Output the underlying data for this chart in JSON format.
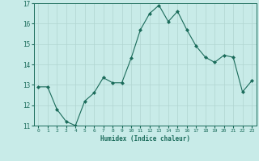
{
  "x": [
    0,
    1,
    2,
    3,
    4,
    5,
    6,
    7,
    8,
    9,
    10,
    11,
    12,
    13,
    14,
    15,
    16,
    17,
    18,
    19,
    20,
    21,
    22,
    23
  ],
  "y": [
    12.9,
    12.9,
    11.8,
    11.2,
    11.0,
    12.2,
    12.6,
    13.35,
    13.1,
    13.1,
    14.3,
    15.7,
    16.5,
    16.9,
    16.1,
    16.6,
    15.7,
    14.9,
    14.35,
    14.1,
    14.45,
    14.35,
    12.65,
    13.2
  ],
  "line_color": "#1a6b5a",
  "marker": "D",
  "marker_size": 2,
  "bg_color": "#c8ebe8",
  "grid_color": "#b0d5d0",
  "xlabel": "Humidex (Indice chaleur)",
  "xlim": [
    -0.5,
    23.5
  ],
  "ylim": [
    11,
    17
  ],
  "yticks": [
    11,
    12,
    13,
    14,
    15,
    16,
    17
  ],
  "xticks": [
    0,
    1,
    2,
    3,
    4,
    5,
    6,
    7,
    8,
    9,
    10,
    11,
    12,
    13,
    14,
    15,
    16,
    17,
    18,
    19,
    20,
    21,
    22,
    23
  ],
  "tick_color": "#1a6b5a",
  "label_color": "#1a6b5a"
}
